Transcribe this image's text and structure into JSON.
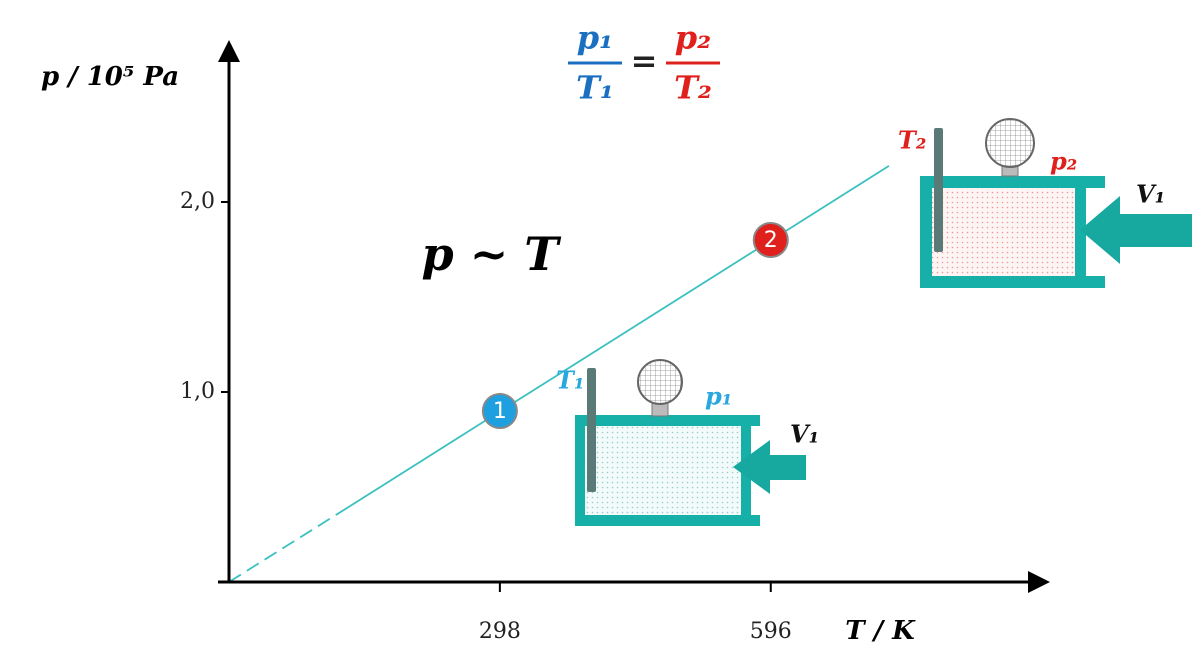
{
  "chart_data": {
    "type": "line",
    "y_label": "p  / 10⁵ Pa",
    "x_label": "T  / K",
    "relation": "p ~ T",
    "formula": {
      "p1": "p₁",
      "T1": "T₁",
      "eq": "=",
      "p2": "p₂",
      "T2": "T₂"
    },
    "state1": {
      "T": "T₁",
      "p": "p₁",
      "V": "V₁"
    },
    "state2": {
      "T": "T₂",
      "p": "p₂",
      "V": "V₁"
    },
    "xlim": [
      0,
      890
    ],
    "ylim": [
      0,
      2.8
    ],
    "xticks": [
      298,
      596
    ],
    "yticks": [
      {
        "value": 1,
        "label": "1,0"
      },
      {
        "value": 2,
        "label": "2,0"
      }
    ],
    "series": [
      {
        "color": "#3cc0c0",
        "x": [
          0,
          130,
          726
        ],
        "values": [
          0,
          0.39,
          2.19
        ]
      }
    ],
    "points": {
      "x": [
        298,
        596
      ],
      "values": [
        0.9,
        1.8
      ],
      "labels": [
        "1",
        "2"
      ],
      "colors": [
        "#1ea0e0",
        "#e0201c"
      ]
    }
  }
}
